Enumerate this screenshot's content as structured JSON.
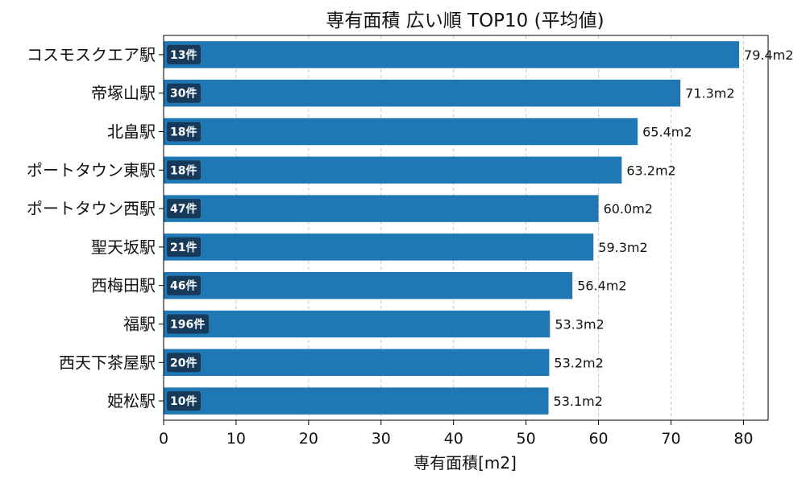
{
  "chart_data": {
    "type": "bar",
    "orientation": "horizontal",
    "title": "専有面積 広い順 TOP10 (平均値)",
    "xlabel": "専有面積[m2]",
    "ylabel": "",
    "xlim": [
      0,
      83.4
    ],
    "xticks": [
      0,
      10,
      20,
      30,
      40,
      50,
      60,
      70,
      80
    ],
    "grid": "x-dashed",
    "bar_color": "#1f77b4",
    "count_badge_color": "#173a5a",
    "categories": [
      "コスモスクエア駅",
      "帝塚山駅",
      "北畠駅",
      "ポートタウン東駅",
      "ポートタウン西駅",
      "聖天坂駅",
      "西梅田駅",
      "福駅",
      "西天下茶屋駅",
      "姫松駅"
    ],
    "values": [
      79.4,
      71.3,
      65.4,
      63.2,
      60.0,
      59.3,
      56.4,
      53.3,
      53.2,
      53.1
    ],
    "value_labels": [
      "79.4m2",
      "71.3m2",
      "65.4m2",
      "63.2m2",
      "60.0m2",
      "59.3m2",
      "56.4m2",
      "53.3m2",
      "53.2m2",
      "53.1m2"
    ],
    "count_labels": [
      "13件",
      "30件",
      "18件",
      "18件",
      "47件",
      "21件",
      "46件",
      "196件",
      "20件",
      "10件"
    ]
  }
}
